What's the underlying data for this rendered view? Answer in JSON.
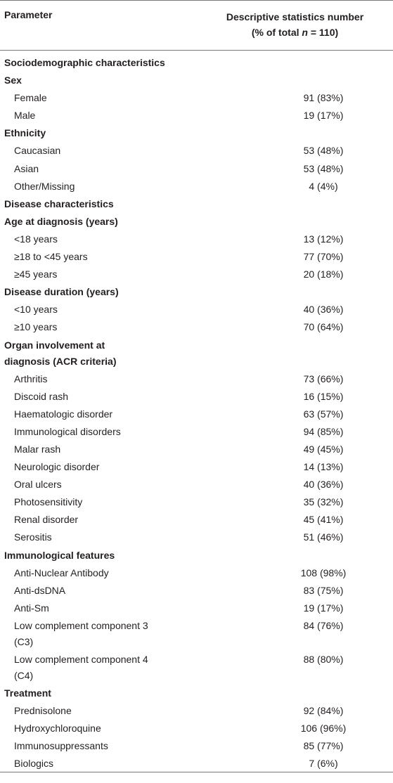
{
  "header": {
    "parameter": "Parameter",
    "stat_line1": "Descriptive statistics number",
    "stat_line2": [
      "(% of total ",
      "n",
      " = 110)"
    ]
  },
  "rows": [
    {
      "kind": "heading",
      "label": "Sociodemographic characteristics"
    },
    {
      "kind": "heading",
      "label": "Sex"
    },
    {
      "kind": "item",
      "label": "Female",
      "value": "91 (83%)"
    },
    {
      "kind": "item",
      "label": "Male",
      "value": "19 (17%)"
    },
    {
      "kind": "heading",
      "label": "Ethnicity"
    },
    {
      "kind": "item",
      "label": "Caucasian",
      "value": "53 (48%)"
    },
    {
      "kind": "item",
      "label": "Asian",
      "value": "53 (48%)"
    },
    {
      "kind": "item",
      "label": "Other/Missing",
      "value": "4 (4%)"
    },
    {
      "kind": "heading",
      "label": "Disease characteristics"
    },
    {
      "kind": "heading",
      "label": "Age at diagnosis (years)"
    },
    {
      "kind": "item",
      "label": "<18 years",
      "value": "13 (12%)"
    },
    {
      "kind": "item",
      "label": "≥18 to <45 years",
      "value": "77 (70%)"
    },
    {
      "kind": "item",
      "label": "≥45 years",
      "value": "20 (18%)"
    },
    {
      "kind": "heading",
      "label": "Disease duration (years)"
    },
    {
      "kind": "item",
      "label": "<10 years",
      "value": "40 (36%)"
    },
    {
      "kind": "item",
      "label": "≥10 years",
      "value": "70 (64%)"
    },
    {
      "kind": "heading",
      "label": [
        "Organ involvement at",
        "diagnosis (ACR criteria)"
      ]
    },
    {
      "kind": "item",
      "label": "Arthritis",
      "value": "73 (66%)"
    },
    {
      "kind": "item",
      "label": "Discoid rash",
      "value": "16 (15%)"
    },
    {
      "kind": "item",
      "label": "Haematologic disorder",
      "value": "63 (57%)"
    },
    {
      "kind": "item",
      "label": "Immunological disorders",
      "value": "94 (85%)"
    },
    {
      "kind": "item",
      "label": "Malar rash",
      "value": "49 (45%)"
    },
    {
      "kind": "item",
      "label": "Neurologic disorder",
      "value": "14 (13%)"
    },
    {
      "kind": "item",
      "label": "Oral ulcers",
      "value": "40 (36%)"
    },
    {
      "kind": "item",
      "label": "Photosensitivity",
      "value": "35 (32%)"
    },
    {
      "kind": "item",
      "label": "Renal disorder",
      "value": "45 (41%)"
    },
    {
      "kind": "item",
      "label": "Serositis",
      "value": "51 (46%)"
    },
    {
      "kind": "heading",
      "label": "Immunological features"
    },
    {
      "kind": "item",
      "label": "Anti-Nuclear Antibody",
      "value": "108 (98%)"
    },
    {
      "kind": "item",
      "label": "Anti-dsDNA",
      "value": "83 (75%)"
    },
    {
      "kind": "item",
      "label": "Anti-Sm",
      "value": "19 (17%)"
    },
    {
      "kind": "item",
      "label": [
        "Low complement component 3",
        "(C3)"
      ],
      "value": "84 (76%)"
    },
    {
      "kind": "item",
      "label": [
        "Low complement component 4",
        "(C4)"
      ],
      "value": "88 (80%)"
    },
    {
      "kind": "heading",
      "label": "Treatment"
    },
    {
      "kind": "item",
      "label": "Prednisolone",
      "value": "92 (84%)"
    },
    {
      "kind": "item",
      "label": "Hydroxychloroquine",
      "value": "106 (96%)"
    },
    {
      "kind": "item",
      "label": "Immunosuppressants",
      "value": "85 (77%)"
    },
    {
      "kind": "item",
      "label": "Biologics",
      "value": "7 (6%)"
    }
  ]
}
